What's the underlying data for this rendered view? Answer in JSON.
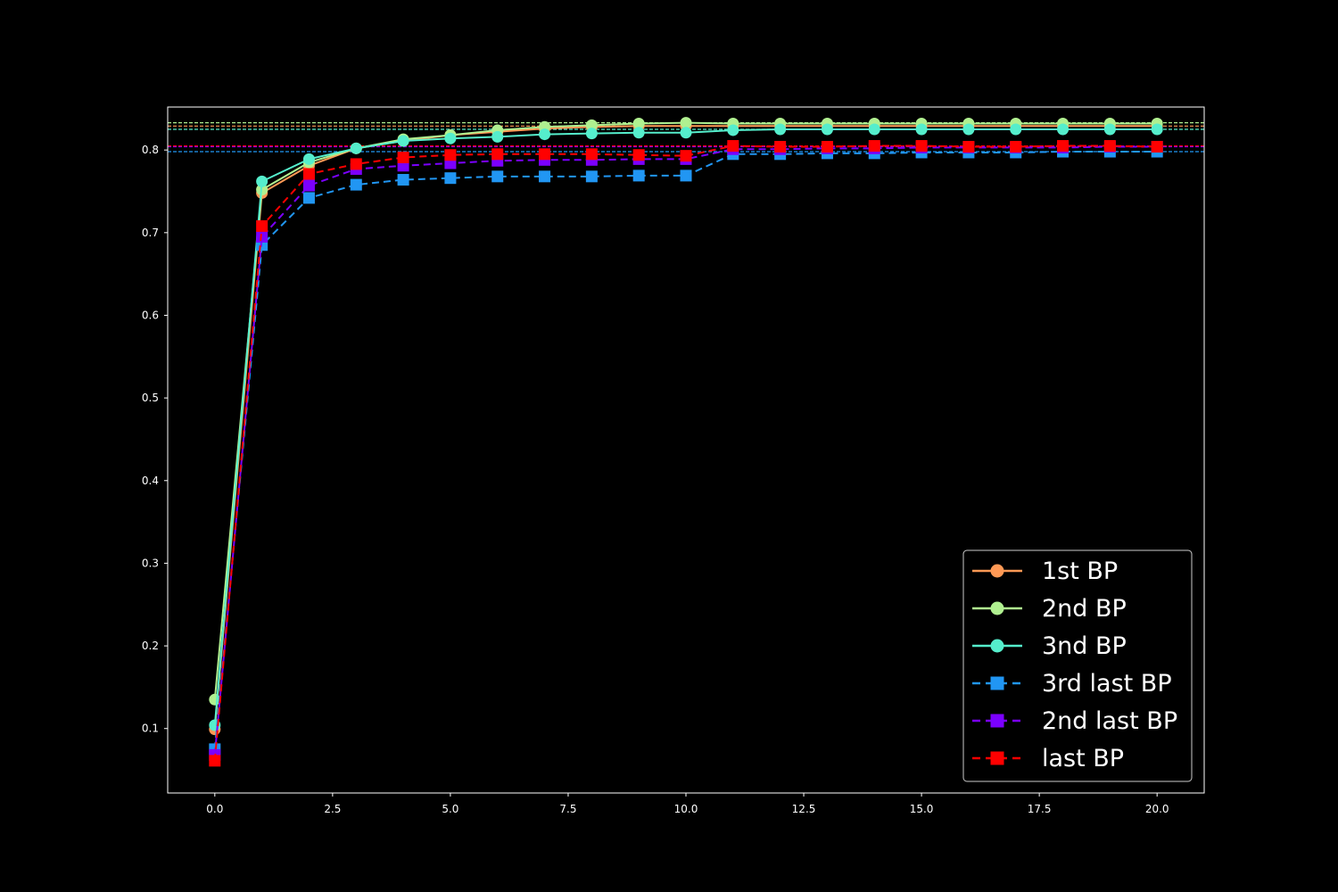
{
  "chart_data": {
    "type": "line",
    "title": "",
    "xlabel": "",
    "ylabel": "",
    "xlim": [
      -1,
      21
    ],
    "ylim": [
      0.022,
      0.852
    ],
    "grid": false,
    "legend_position": "lower-right",
    "background": "#000000",
    "axis_color": "#ffffff",
    "x_ticks": [
      0,
      2.5,
      5,
      7.5,
      10,
      12.5,
      15,
      17.5,
      20
    ],
    "x_tick_labels": [
      "0.0",
      "2.5",
      "5.0",
      "7.5",
      "10.0",
      "12.5",
      "15.0",
      "17.5",
      "20.0"
    ],
    "y_ticks": [
      0.1,
      0.2,
      0.3,
      0.4,
      0.5,
      0.6,
      0.7,
      0.8
    ],
    "y_tick_labels": [
      "0.1",
      "0.2",
      "0.3",
      "0.4",
      "0.5",
      "0.6",
      "0.7",
      "0.8"
    ],
    "x": [
      0,
      1,
      2,
      3,
      4,
      5,
      6,
      7,
      8,
      9,
      10,
      11,
      12,
      13,
      14,
      15,
      16,
      17,
      18,
      19,
      20
    ],
    "series": [
      {
        "name": "1st BP",
        "color": "#ff9955",
        "marker": "circle",
        "dash": "solid",
        "reference": 0.829,
        "values": [
          0.099,
          0.748,
          0.781,
          0.802,
          0.811,
          0.818,
          0.822,
          0.826,
          0.828,
          0.829,
          0.829,
          0.829,
          0.829,
          0.829,
          0.829,
          0.829,
          0.829,
          0.829,
          0.829,
          0.829,
          0.829
        ]
      },
      {
        "name": "2nd BP",
        "color": "#b0f090",
        "marker": "circle",
        "dash": "solid",
        "reference": 0.833,
        "values": [
          0.135,
          0.752,
          0.785,
          0.802,
          0.813,
          0.818,
          0.824,
          0.828,
          0.83,
          0.832,
          0.833,
          0.832,
          0.832,
          0.832,
          0.832,
          0.832,
          0.832,
          0.832,
          0.832,
          0.832,
          0.832
        ]
      },
      {
        "name": "3nd BP",
        "color": "#55eecc",
        "marker": "circle",
        "dash": "solid",
        "reference": 0.825,
        "values": [
          0.104,
          0.762,
          0.789,
          0.802,
          0.811,
          0.814,
          0.816,
          0.819,
          0.82,
          0.821,
          0.821,
          0.824,
          0.825,
          0.825,
          0.825,
          0.825,
          0.825,
          0.825,
          0.825,
          0.825,
          0.825
        ]
      },
      {
        "name": "3rd last BP",
        "color": "#2196f3",
        "marker": "square",
        "dash": "dashed",
        "reference": 0.798,
        "values": [
          0.075,
          0.685,
          0.742,
          0.758,
          0.764,
          0.766,
          0.768,
          0.768,
          0.768,
          0.769,
          0.769,
          0.795,
          0.795,
          0.796,
          0.796,
          0.797,
          0.797,
          0.797,
          0.798,
          0.798,
          0.798
        ]
      },
      {
        "name": "2nd last BP",
        "color": "#7b00ff",
        "marker": "square",
        "dash": "dashed",
        "reference": 0.804,
        "values": [
          0.068,
          0.695,
          0.757,
          0.777,
          0.781,
          0.784,
          0.787,
          0.788,
          0.788,
          0.789,
          0.789,
          0.801,
          0.801,
          0.802,
          0.802,
          0.803,
          0.803,
          0.803,
          0.803,
          0.804,
          0.804
        ]
      },
      {
        "name": "last BP",
        "color": "#ff0000",
        "marker": "square",
        "dash": "dashed",
        "reference": 0.805,
        "values": [
          0.061,
          0.708,
          0.771,
          0.783,
          0.791,
          0.794,
          0.795,
          0.795,
          0.795,
          0.794,
          0.793,
          0.805,
          0.804,
          0.804,
          0.805,
          0.805,
          0.804,
          0.804,
          0.805,
          0.805,
          0.804
        ]
      }
    ]
  }
}
